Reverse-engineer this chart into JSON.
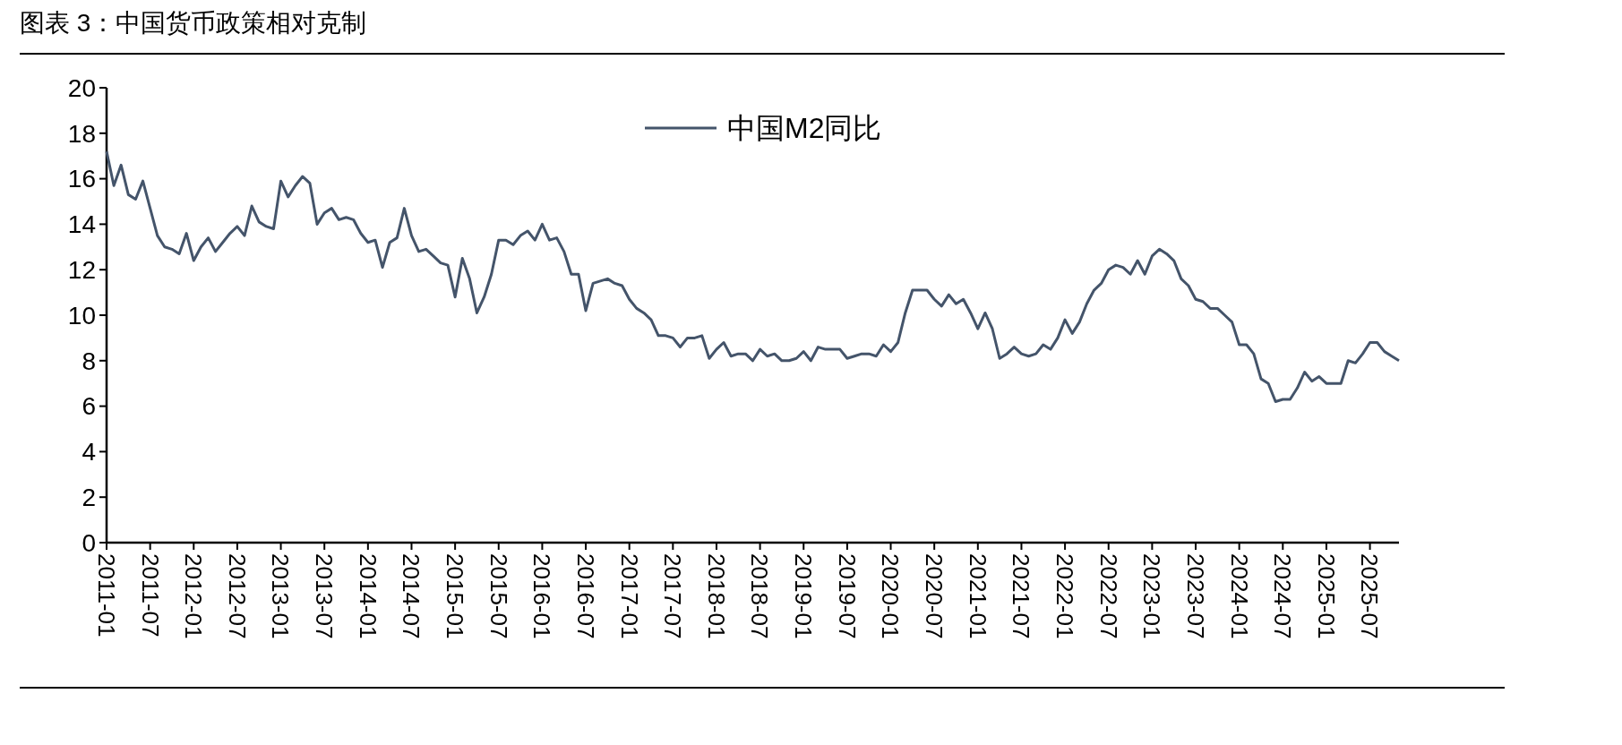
{
  "chart_data": {
    "type": "line",
    "title": "图表 3：中国货币政策相对克制",
    "categories": [
      "2011-01",
      null,
      null,
      null,
      null,
      null,
      "2011-07",
      null,
      null,
      null,
      null,
      null,
      "2012-01",
      null,
      null,
      null,
      null,
      null,
      "2012-07",
      null,
      null,
      null,
      null,
      null,
      "2013-01",
      null,
      null,
      null,
      null,
      null,
      "2013-07",
      null,
      null,
      null,
      null,
      null,
      "2014-01",
      null,
      null,
      null,
      null,
      null,
      "2014-07",
      null,
      null,
      null,
      null,
      null,
      "2015-01",
      null,
      null,
      null,
      null,
      null,
      "2015-07",
      null,
      null,
      null,
      null,
      null,
      "2016-01",
      null,
      null,
      null,
      null,
      null,
      "2016-07",
      null,
      null,
      null,
      null,
      null,
      "2017-01",
      null,
      null,
      null,
      null,
      null,
      "2017-07",
      null,
      null,
      null,
      null,
      null,
      "2018-01",
      null,
      null,
      null,
      null,
      null,
      "2018-07",
      null,
      null,
      null,
      null,
      null,
      "2019-01",
      null,
      null,
      null,
      null,
      null,
      "2019-07",
      null,
      null,
      null,
      null,
      null,
      "2020-01",
      null,
      null,
      null,
      null,
      null,
      "2020-07",
      null,
      null,
      null,
      null,
      null,
      "2021-01",
      null,
      null,
      null,
      null,
      null,
      "2021-07",
      null,
      null,
      null,
      null,
      null,
      "2022-01",
      null,
      null,
      null,
      null,
      null,
      "2022-07",
      null,
      null,
      null,
      null,
      null,
      "2023-01",
      null,
      null,
      null,
      null,
      null,
      "2023-07",
      null,
      null,
      null,
      null,
      null,
      "2024-01",
      null,
      null,
      null,
      null,
      null,
      "2024-07",
      null,
      null,
      null,
      null,
      null,
      "2025-01",
      null,
      null,
      null,
      null,
      null,
      "2025-07",
      null,
      null,
      null,
      null
    ],
    "series": [
      {
        "name": "中国M2同比",
        "color": "#44546a",
        "values": [
          17.2,
          15.7,
          16.6,
          15.3,
          15.1,
          15.9,
          14.7,
          13.5,
          13.0,
          12.9,
          12.7,
          13.6,
          12.4,
          13.0,
          13.4,
          12.8,
          13.2,
          13.6,
          13.9,
          13.5,
          14.8,
          14.1,
          13.9,
          13.8,
          15.9,
          15.2,
          15.7,
          16.1,
          15.8,
          14.0,
          14.5,
          14.7,
          14.2,
          14.3,
          14.2,
          13.6,
          13.2,
          13.3,
          12.1,
          13.2,
          13.4,
          14.7,
          13.5,
          12.8,
          12.9,
          12.6,
          12.3,
          12.2,
          10.8,
          12.5,
          11.6,
          10.1,
          10.8,
          11.8,
          13.3,
          13.3,
          13.1,
          13.5,
          13.7,
          13.3,
          14.0,
          13.3,
          13.4,
          12.8,
          11.8,
          11.8,
          10.2,
          11.4,
          11.5,
          11.6,
          11.4,
          11.3,
          10.7,
          10.3,
          10.1,
          9.8,
          9.1,
          9.1,
          9.0,
          8.6,
          9.0,
          9.0,
          9.1,
          8.1,
          8.5,
          8.8,
          8.2,
          8.3,
          8.3,
          8.0,
          8.5,
          8.2,
          8.3,
          8.0,
          8.0,
          8.1,
          8.4,
          8.0,
          8.6,
          8.5,
          8.5,
          8.5,
          8.1,
          8.2,
          8.3,
          8.3,
          8.2,
          8.7,
          8.4,
          8.8,
          10.1,
          11.1,
          11.1,
          11.1,
          10.7,
          10.4,
          10.9,
          10.5,
          10.7,
          10.1,
          9.4,
          10.1,
          9.4,
          8.1,
          8.3,
          8.6,
          8.3,
          8.2,
          8.3,
          8.7,
          8.5,
          9.0,
          9.8,
          9.2,
          9.7,
          10.5,
          11.1,
          11.4,
          12.0,
          12.2,
          12.1,
          11.8,
          12.4,
          11.8,
          12.6,
          12.9,
          12.7,
          12.4,
          11.6,
          11.3,
          10.7,
          10.6,
          10.3,
          10.3,
          10.0,
          9.7,
          8.7,
          8.7,
          8.3,
          7.2,
          7.0,
          6.2,
          6.3,
          6.3,
          6.8,
          7.5,
          7.1,
          7.3,
          7.0,
          7.0,
          7.0,
          8.0,
          7.9,
          8.3,
          8.8,
          8.8,
          8.4,
          8.2,
          8.0
        ]
      }
    ],
    "ylim": [
      0,
      20
    ],
    "yticks": [
      0,
      2,
      4,
      6,
      8,
      10,
      12,
      14,
      16,
      18,
      20
    ],
    "legend": "top"
  }
}
